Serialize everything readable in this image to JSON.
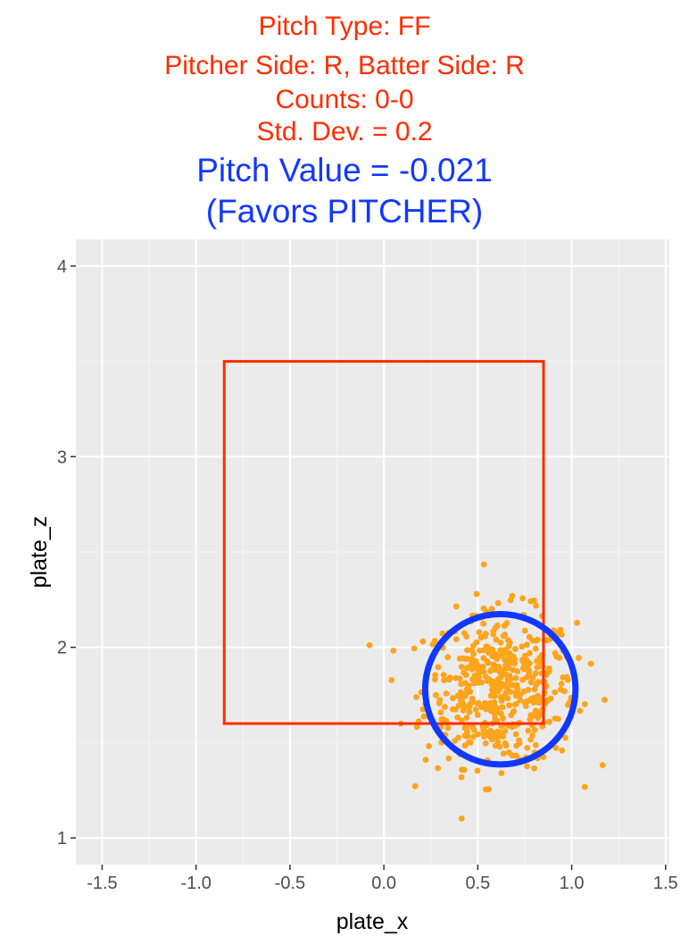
{
  "chart_data": {
    "type": "scatter",
    "title_lines": [
      "Pitch Type: FF",
      "Pitcher Side: R, Batter Side: R",
      "Counts:  0-0",
      "Std. Dev. = 0.2"
    ],
    "value_lines": [
      "Pitch Value =  -0.021",
      "(Favors PITCHER)"
    ],
    "xlabel": "plate_x",
    "ylabel": "plate_z",
    "xlim": [
      -1.5,
      1.5
    ],
    "ylim": [
      1.0,
      4.0
    ],
    "x_ticks": [
      -1.5,
      -1.0,
      -0.5,
      0.0,
      0.5,
      1.0,
      1.5
    ],
    "x_tick_labels": [
      "-1.5",
      "-1.0",
      "-0.5",
      "0.0",
      "0.5",
      "1.0",
      "1.5"
    ],
    "y_ticks": [
      1,
      2,
      3,
      4
    ],
    "y_tick_labels": [
      "1",
      "2",
      "3",
      "4"
    ],
    "grid": true,
    "strike_zone": {
      "x": [
        -0.85,
        0.85
      ],
      "z": [
        1.6,
        3.5
      ],
      "color": "#ff2d00"
    },
    "aim_circle": {
      "center_x": 0.62,
      "center_z": 1.78,
      "radius": 0.4,
      "color": "#1238ff"
    },
    "points_color": "#ffa41b",
    "points_count": 500,
    "points_std_dev": 0.2
  },
  "colors": {
    "title": "#ff2d00",
    "value": "#1238ff",
    "panel": "#ebebeb"
  }
}
